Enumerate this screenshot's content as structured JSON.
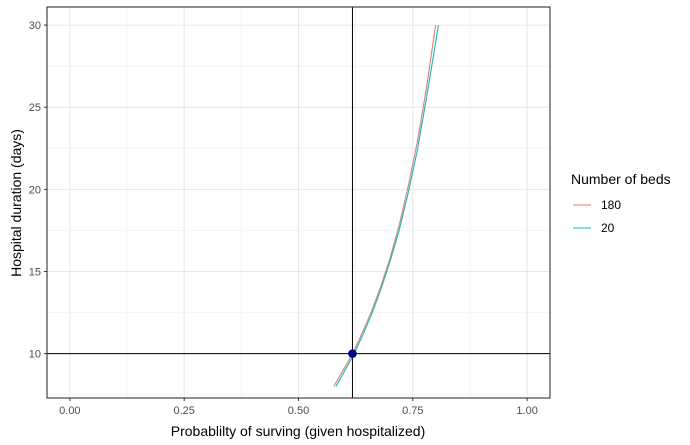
{
  "chart_data": {
    "type": "line",
    "title": "",
    "xlabel": "Probablilty of surving (given hospitalized)",
    "ylabel": "Hospital duration (days)",
    "xlim": [
      -0.05,
      1.05
    ],
    "ylim": [
      7.3,
      31.1
    ],
    "xticks": [
      0,
      0.25,
      0.5,
      0.75,
      1
    ],
    "xtick_labels": [
      "0.00",
      "0.25",
      "0.50",
      "0.75",
      "1.00"
    ],
    "yticks": [
      10,
      15,
      20,
      25,
      30
    ],
    "ytick_labels": [
      "10",
      "15",
      "20",
      "25",
      "30"
    ],
    "grid": true,
    "legend": {
      "title": "Number of beds",
      "position": "right"
    },
    "series": [
      {
        "name": "180",
        "color": "#F8766D",
        "x": [
          0.577,
          0.6,
          0.62,
          0.64,
          0.66,
          0.68,
          0.7,
          0.72,
          0.74,
          0.76,
          0.78,
          0.79,
          0.8
        ],
        "y": [
          8.0,
          9.1,
          10.1,
          11.3,
          12.6,
          14.1,
          15.8,
          17.8,
          20.2,
          22.9,
          26.2,
          28.1,
          30.0
        ]
      },
      {
        "name": "20",
        "color": "#00BFC4",
        "x": [
          0.582,
          0.6,
          0.62,
          0.64,
          0.66,
          0.68,
          0.7,
          0.72,
          0.74,
          0.76,
          0.78,
          0.795,
          0.806
        ],
        "y": [
          8.0,
          8.9,
          9.9,
          11.1,
          12.4,
          13.9,
          15.6,
          17.5,
          19.8,
          22.4,
          25.6,
          28.1,
          30.0
        ]
      }
    ],
    "reference_lines": {
      "vline_x": 0.618,
      "hline_y": 10
    },
    "highlight_point": {
      "x": 0.618,
      "y": 10,
      "color": "#00008B"
    }
  }
}
